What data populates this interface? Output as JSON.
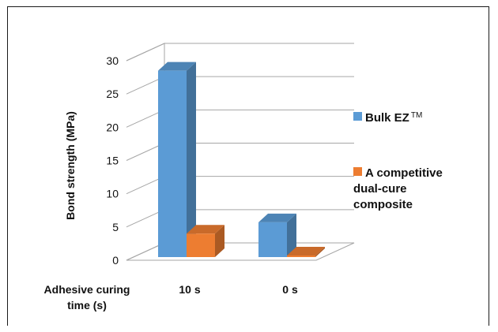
{
  "chart_data": {
    "type": "bar",
    "style": "3d-clustered-column",
    "ylabel": "Bond strength (MPa)",
    "xlabel": "Adhesive curing time (s)",
    "categories": [
      "10 s",
      "0 s"
    ],
    "ylim": [
      0,
      30
    ],
    "yticks": [
      0,
      5,
      10,
      15,
      20,
      25,
      30
    ],
    "grid": true,
    "legend_position": "right",
    "series": [
      {
        "name": "Bulk EZ",
        "name_suffix": "TM",
        "values": [
          28.5,
          5.7
        ],
        "color": "#5b9bd5"
      },
      {
        "name": "A competitive dual-cure composite",
        "values": [
          4.0,
          0.0
        ],
        "color": "#ed7d31"
      }
    ]
  }
}
